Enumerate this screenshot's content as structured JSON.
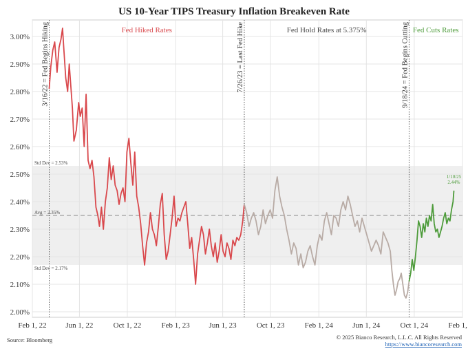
{
  "chart_data": {
    "type": "line",
    "title": "US 10-Year TIPS Treasury Inflation Breakeven Rate",
    "xlabel": "",
    "ylabel": "",
    "y_unit": "%",
    "ylim": [
      1.98,
      3.06
    ],
    "xlim": [
      "2022-02-01",
      "2025-02-01"
    ],
    "y_ticks": [
      {
        "value": 2.0,
        "label": "2.00%"
      },
      {
        "value": 2.1,
        "label": "2.10%"
      },
      {
        "value": 2.2,
        "label": "2.20%"
      },
      {
        "value": 2.3,
        "label": "2.30%"
      },
      {
        "value": 2.4,
        "label": "2.40%"
      },
      {
        "value": 2.5,
        "label": "2.50%"
      },
      {
        "value": 2.6,
        "label": "2.60%"
      },
      {
        "value": 2.7,
        "label": "2.70%"
      },
      {
        "value": 2.8,
        "label": "2.80%"
      },
      {
        "value": 2.9,
        "label": "2.90%"
      },
      {
        "value": 3.0,
        "label": "3.00%"
      }
    ],
    "x_ticks": [
      {
        "date": "2022-02-01",
        "label": "Feb 1, 22"
      },
      {
        "date": "2022-06-01",
        "label": "Jun 1, 22"
      },
      {
        "date": "2022-10-01",
        "label": "Oct 1, 22"
      },
      {
        "date": "2023-02-01",
        "label": "Feb 1, 23"
      },
      {
        "date": "2023-06-01",
        "label": "Jun 1, 23"
      },
      {
        "date": "2023-10-01",
        "label": "Oct 1, 23"
      },
      {
        "date": "2024-02-01",
        "label": "Feb 1, 24"
      },
      {
        "date": "2024-06-01",
        "label": "Jun 1, 24"
      },
      {
        "date": "2024-10-01",
        "label": "Oct 1, 24"
      },
      {
        "date": "2025-02-01",
        "label": "Feb 1, 25"
      }
    ],
    "grid": true,
    "band": {
      "upper": 2.53,
      "upper_label": "Std Dev = 2.53%",
      "lower": 2.17,
      "lower_label": "Std Dev = 2.17%",
      "avg": 2.35,
      "avg_label": "Avg = 2.35%",
      "color": "#efefef"
    },
    "events": [
      {
        "date": "2022-03-16",
        "label": "3/16/22 = Fed Begins Hiking"
      },
      {
        "date": "2023-07-26",
        "label": "7/26/23 = Last Fed Hike"
      },
      {
        "date": "2024-09-18",
        "label": "9/18/24 = Fed Begins Cutting"
      }
    ],
    "phases": [
      {
        "label": "Fed Hiked Rates",
        "color": "#d9484c"
      },
      {
        "label": "Fed Hold Rates at 5.375%",
        "color": "#444444"
      },
      {
        "label": "Fed Cuts Rates",
        "color": "#4d9b3a"
      }
    ],
    "end_annotation": {
      "date": "2025-01-10",
      "value": 2.44,
      "line1": "1/10/25",
      "line2": "2.44%"
    },
    "series": [
      {
        "color": "#d9484c",
        "x": [
          "2022-03-16",
          "2022-03-20",
          "2022-03-25",
          "2022-03-30",
          "2022-04-05",
          "2022-04-10",
          "2022-04-15",
          "2022-04-19",
          "2022-04-22",
          "2022-04-27",
          "2022-05-02",
          "2022-05-06",
          "2022-05-10",
          "2022-05-14",
          "2022-05-18",
          "2022-05-24",
          "2022-05-30",
          "2022-06-03",
          "2022-06-08",
          "2022-06-13",
          "2022-06-18",
          "2022-06-23",
          "2022-06-28",
          "2022-07-03",
          "2022-07-08",
          "2022-07-13",
          "2022-07-18",
          "2022-07-22",
          "2022-07-27",
          "2022-08-01",
          "2022-08-06",
          "2022-08-11",
          "2022-08-16",
          "2022-08-21",
          "2022-08-26",
          "2022-08-31",
          "2022-09-05",
          "2022-09-10",
          "2022-09-15",
          "2022-09-20",
          "2022-09-25",
          "2022-09-30",
          "2022-10-05",
          "2022-10-10",
          "2022-10-15",
          "2022-10-20",
          "2022-10-25",
          "2022-10-30",
          "2022-11-04",
          "2022-11-09",
          "2022-11-14",
          "2022-11-19",
          "2022-11-24",
          "2022-11-29",
          "2022-12-04",
          "2022-12-09",
          "2022-12-14",
          "2022-12-19",
          "2022-12-24",
          "2022-12-29",
          "2023-01-03",
          "2023-01-08",
          "2023-01-13",
          "2023-01-18",
          "2023-01-23",
          "2023-01-28",
          "2023-02-02",
          "2023-02-07",
          "2023-02-12",
          "2023-02-17",
          "2023-02-22",
          "2023-02-27",
          "2023-03-04",
          "2023-03-09",
          "2023-03-14",
          "2023-03-19",
          "2023-03-24",
          "2023-03-29",
          "2023-04-03",
          "2023-04-08",
          "2023-04-13",
          "2023-04-18",
          "2023-04-23",
          "2023-04-28",
          "2023-05-03",
          "2023-05-08",
          "2023-05-13",
          "2023-05-18",
          "2023-05-23",
          "2023-05-28",
          "2023-06-02",
          "2023-06-07",
          "2023-06-12",
          "2023-06-17",
          "2023-06-22",
          "2023-06-27",
          "2023-07-02",
          "2023-07-07",
          "2023-07-12",
          "2023-07-17",
          "2023-07-22",
          "2023-07-26"
        ],
        "values": [
          2.81,
          2.89,
          2.95,
          2.98,
          2.87,
          2.96,
          2.99,
          3.03,
          2.96,
          2.85,
          2.8,
          2.9,
          2.82,
          2.74,
          2.62,
          2.66,
          2.76,
          2.71,
          2.74,
          2.6,
          2.79,
          2.55,
          2.52,
          2.55,
          2.49,
          2.38,
          2.35,
          2.31,
          2.38,
          2.3,
          2.4,
          2.45,
          2.56,
          2.48,
          2.53,
          2.46,
          2.44,
          2.39,
          2.43,
          2.45,
          2.4,
          2.58,
          2.63,
          2.54,
          2.46,
          2.58,
          2.42,
          2.38,
          2.32,
          2.24,
          2.17,
          2.25,
          2.29,
          2.36,
          2.3,
          2.28,
          2.24,
          2.31,
          2.39,
          2.43,
          2.28,
          2.19,
          2.22,
          2.28,
          2.34,
          2.42,
          2.31,
          2.34,
          2.33,
          2.36,
          2.38,
          2.4,
          2.32,
          2.23,
          2.27,
          2.19,
          2.1,
          2.21,
          2.26,
          2.31,
          2.28,
          2.21,
          2.25,
          2.3,
          2.24,
          2.2,
          2.25,
          2.18,
          2.22,
          2.28,
          2.22,
          2.2,
          2.25,
          2.23,
          2.19,
          2.26,
          2.24,
          2.27,
          2.26,
          2.28,
          2.33,
          2.39
        ]
      },
      {
        "color": "#b8aba5",
        "x": [
          "2023-07-26",
          "2023-08-01",
          "2023-08-07",
          "2023-08-13",
          "2023-08-19",
          "2023-08-25",
          "2023-08-31",
          "2023-09-06",
          "2023-09-12",
          "2023-09-18",
          "2023-09-24",
          "2023-09-30",
          "2023-10-06",
          "2023-10-12",
          "2023-10-18",
          "2023-10-24",
          "2023-10-30",
          "2023-11-05",
          "2023-11-11",
          "2023-11-17",
          "2023-11-23",
          "2023-11-29",
          "2023-12-05",
          "2023-12-11",
          "2023-12-17",
          "2023-12-23",
          "2023-12-29",
          "2024-01-04",
          "2024-01-10",
          "2024-01-16",
          "2024-01-22",
          "2024-01-28",
          "2024-02-03",
          "2024-02-09",
          "2024-02-15",
          "2024-02-21",
          "2024-02-27",
          "2024-03-04",
          "2024-03-10",
          "2024-03-16",
          "2024-03-22",
          "2024-03-28",
          "2024-04-03",
          "2024-04-09",
          "2024-04-15",
          "2024-04-21",
          "2024-04-27",
          "2024-05-03",
          "2024-05-09",
          "2024-05-15",
          "2024-05-21",
          "2024-05-27",
          "2024-06-02",
          "2024-06-08",
          "2024-06-14",
          "2024-06-20",
          "2024-06-26",
          "2024-07-02",
          "2024-07-08",
          "2024-07-14",
          "2024-07-20",
          "2024-07-26",
          "2024-08-01",
          "2024-08-05",
          "2024-08-09",
          "2024-08-13",
          "2024-08-17",
          "2024-08-21",
          "2024-08-25",
          "2024-08-29",
          "2024-09-02",
          "2024-09-06",
          "2024-09-10",
          "2024-09-14",
          "2024-09-18"
        ],
        "values": [
          2.39,
          2.36,
          2.31,
          2.34,
          2.36,
          2.33,
          2.28,
          2.31,
          2.37,
          2.32,
          2.35,
          2.37,
          2.34,
          2.44,
          2.49,
          2.42,
          2.38,
          2.35,
          2.3,
          2.26,
          2.21,
          2.25,
          2.23,
          2.17,
          2.21,
          2.16,
          2.18,
          2.22,
          2.24,
          2.2,
          2.17,
          2.24,
          2.28,
          2.26,
          2.33,
          2.36,
          2.32,
          2.28,
          2.35,
          2.34,
          2.31,
          2.37,
          2.4,
          2.37,
          2.42,
          2.39,
          2.35,
          2.31,
          2.33,
          2.29,
          2.34,
          2.31,
          2.28,
          2.25,
          2.22,
          2.24,
          2.26,
          2.24,
          2.21,
          2.29,
          2.27,
          2.25,
          2.22,
          2.15,
          2.1,
          2.06,
          2.08,
          2.11,
          2.12,
          2.14,
          2.1,
          2.06,
          2.05,
          2.07,
          2.11
        ]
      },
      {
        "color": "#4d9b3a",
        "x": [
          "2024-09-18",
          "2024-09-22",
          "2024-09-26",
          "2024-09-30",
          "2024-10-04",
          "2024-10-08",
          "2024-10-12",
          "2024-10-16",
          "2024-10-20",
          "2024-10-24",
          "2024-10-28",
          "2024-11-01",
          "2024-11-05",
          "2024-11-09",
          "2024-11-13",
          "2024-11-17",
          "2024-11-21",
          "2024-11-25",
          "2024-11-29",
          "2024-12-03",
          "2024-12-07",
          "2024-12-11",
          "2024-12-15",
          "2024-12-19",
          "2024-12-23",
          "2024-12-27",
          "2024-12-31",
          "2025-01-04",
          "2025-01-08",
          "2025-01-10"
        ],
        "values": [
          2.11,
          2.14,
          2.19,
          2.15,
          2.2,
          2.26,
          2.33,
          2.31,
          2.27,
          2.32,
          2.29,
          2.34,
          2.31,
          2.35,
          2.33,
          2.39,
          2.32,
          2.29,
          2.3,
          2.27,
          2.29,
          2.31,
          2.34,
          2.36,
          2.32,
          2.34,
          2.33,
          2.37,
          2.4,
          2.44
        ]
      }
    ]
  },
  "footer": {
    "source": "Source: Bloomberg",
    "copyright": "© 2025 Bianco Research, L.L.C. All Rights Reserved",
    "url": "https://www.biancoresearch.com"
  }
}
